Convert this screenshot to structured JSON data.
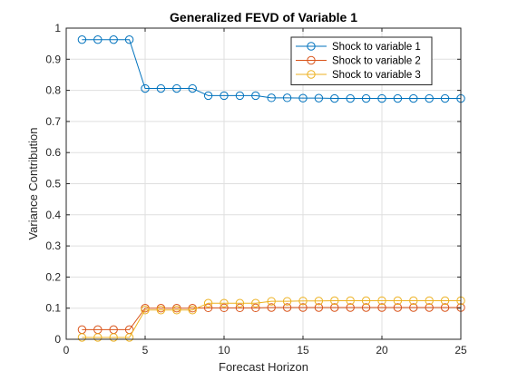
{
  "chart_data": {
    "type": "line",
    "title": "Generalized FEVD of Variable 1",
    "xlabel": "Forecast Horizon",
    "ylabel": "Variance Contribution",
    "xlim": [
      0,
      25
    ],
    "ylim": [
      0,
      1
    ],
    "xticks": [
      0,
      5,
      10,
      15,
      20,
      25
    ],
    "yticks": [
      0,
      0.1,
      0.2,
      0.3,
      0.4,
      0.5,
      0.6,
      0.7,
      0.8,
      0.9,
      1
    ],
    "ytick_labels": [
      "0",
      "0.1",
      "0.2",
      "0.3",
      "0.4",
      "0.5",
      "0.6",
      "0.7",
      "0.8",
      "0.9",
      "1"
    ],
    "grid": true,
    "legend_position": "top-right",
    "x": [
      1,
      2,
      3,
      4,
      5,
      6,
      7,
      8,
      9,
      10,
      11,
      12,
      13,
      14,
      15,
      16,
      17,
      18,
      19,
      20,
      21,
      22,
      23,
      24,
      25
    ],
    "series": [
      {
        "name": "Shock to variable 1",
        "color": "#0072BD",
        "marker": "circle",
        "values": [
          0.963,
          0.963,
          0.963,
          0.963,
          0.806,
          0.806,
          0.806,
          0.806,
          0.783,
          0.783,
          0.783,
          0.783,
          0.776,
          0.776,
          0.775,
          0.775,
          0.774,
          0.774,
          0.774,
          0.774,
          0.774,
          0.774,
          0.774,
          0.774,
          0.774
        ]
      },
      {
        "name": "Shock to variable 2",
        "color": "#D95319",
        "marker": "circle",
        "values": [
          0.031,
          0.031,
          0.031,
          0.031,
          0.1,
          0.1,
          0.1,
          0.1,
          0.101,
          0.101,
          0.101,
          0.101,
          0.102,
          0.102,
          0.102,
          0.102,
          0.102,
          0.102,
          0.102,
          0.102,
          0.102,
          0.102,
          0.102,
          0.102,
          0.102
        ]
      },
      {
        "name": "Shock to variable 3",
        "color": "#EDB120",
        "marker": "circle",
        "values": [
          0.006,
          0.006,
          0.006,
          0.006,
          0.094,
          0.094,
          0.094,
          0.094,
          0.116,
          0.116,
          0.116,
          0.116,
          0.122,
          0.122,
          0.123,
          0.123,
          0.124,
          0.124,
          0.124,
          0.124,
          0.124,
          0.124,
          0.124,
          0.124,
          0.124
        ]
      }
    ]
  }
}
